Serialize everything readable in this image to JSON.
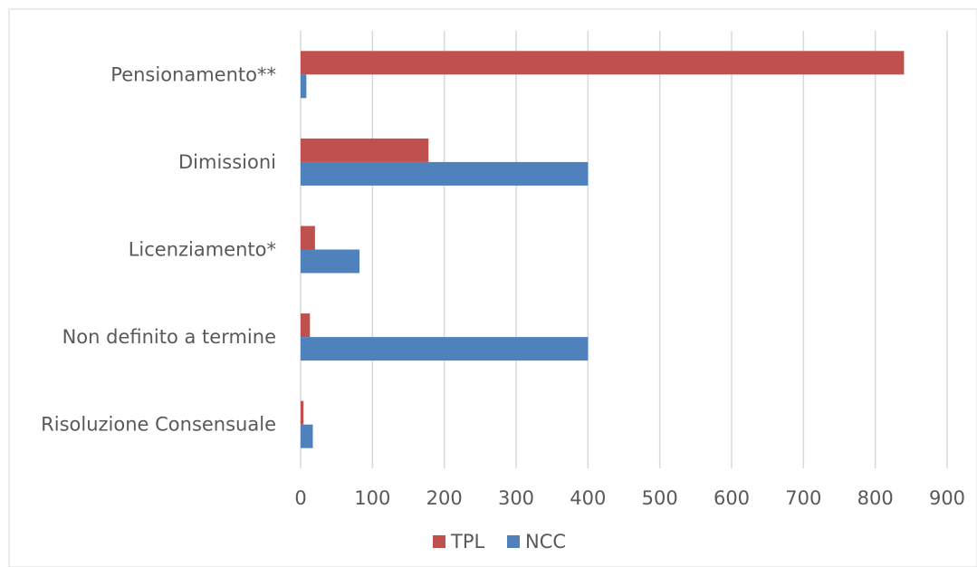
{
  "chart_data": {
    "type": "bar",
    "orientation": "horizontal",
    "categories": [
      "Pensionamento**",
      "Dimissioni",
      "Licenziamento*",
      "Non definito a termine",
      "Risoluzione Consensuale"
    ],
    "series": [
      {
        "name": "TPL",
        "color": "#c0504d",
        "values": [
          840,
          178,
          20,
          13,
          4
        ]
      },
      {
        "name": "NCC",
        "color": "#4f81bd",
        "values": [
          8,
          400,
          82,
          400,
          17
        ]
      }
    ],
    "x_ticks": [
      0,
      100,
      200,
      300,
      400,
      500,
      600,
      700,
      800,
      900
    ],
    "xlim": [
      0,
      900
    ],
    "grid": true,
    "legend_position": "bottom",
    "title": "",
    "xlabel": "",
    "ylabel": ""
  }
}
